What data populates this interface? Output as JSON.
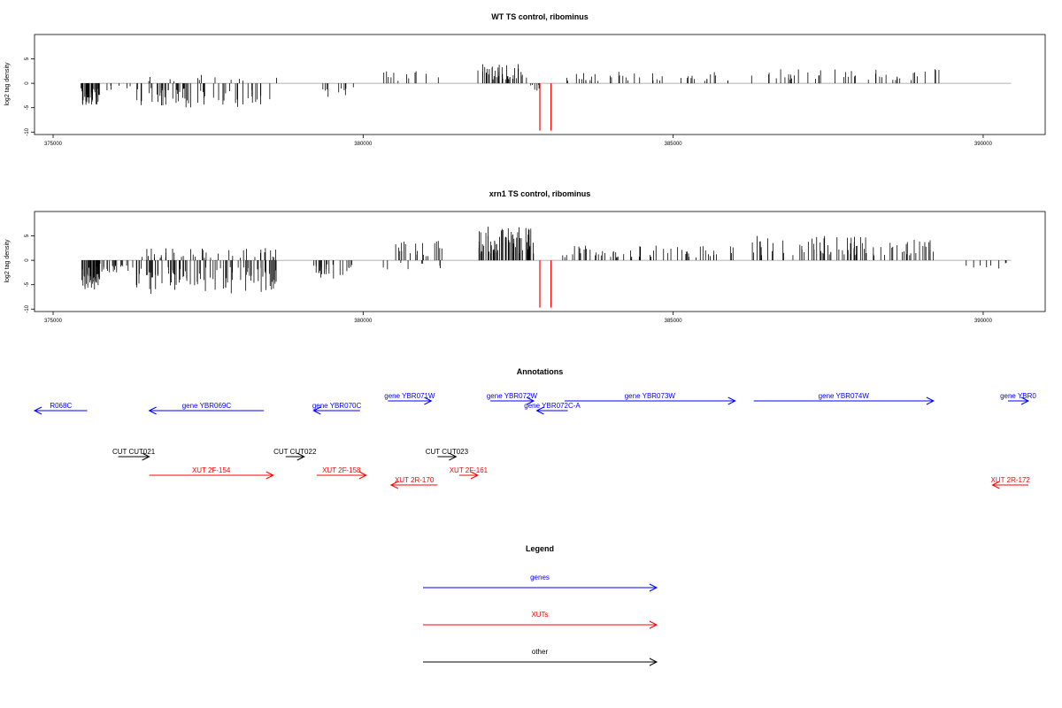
{
  "colors": {
    "genes": "#0000ff",
    "xuts": "#ff0000",
    "other": "#000000",
    "bars": "#000000",
    "highlight": "#ff0000",
    "baseline": "#999999"
  },
  "chart_data": [
    {
      "type": "bar",
      "title": "WT TS control, ribominus",
      "ylabel": "log2 tag density",
      "xlim": [
        374700,
        391000
      ],
      "ylim": [
        -10.5,
        10
      ],
      "xticks": [
        375000,
        380000,
        385000,
        390000
      ],
      "xtick_labels": [
        "375000",
        "380000",
        "385000",
        "390000"
      ],
      "yticks": [
        -10,
        -5,
        0,
        5
      ],
      "ytick_labels": [
        "-10",
        "-5",
        "0",
        "5"
      ],
      "baseline_range": [
        375450,
        390450
      ],
      "segments": [
        {
          "from": 375450,
          "to": 375750,
          "sign": -1,
          "amp": 4.5,
          "density": 45
        },
        {
          "from": 375750,
          "to": 376250,
          "sign": -1,
          "amp": 1.5,
          "density": 6
        },
        {
          "from": 376300,
          "to": 378500,
          "sign": -1,
          "amp": 5,
          "density": 60
        },
        {
          "from": 376500,
          "to": 378700,
          "sign": 1,
          "amp": 2,
          "density": 12
        },
        {
          "from": 379250,
          "to": 379900,
          "sign": -1,
          "amp": 3,
          "density": 10
        },
        {
          "from": 380300,
          "to": 381300,
          "sign": 1,
          "amp": 2.5,
          "density": 12
        },
        {
          "from": 381850,
          "to": 382650,
          "sign": 1,
          "amp": 4,
          "density": 45
        },
        {
          "from": 382700,
          "to": 382850,
          "sign": -1,
          "amp": 1.5,
          "density": 6
        },
        {
          "from": 383250,
          "to": 386000,
          "sign": 1,
          "amp": 2.5,
          "density": 40
        },
        {
          "from": 386250,
          "to": 389300,
          "sign": 1,
          "amp": 3,
          "density": 45
        }
      ],
      "highlight_bars": [
        {
          "x": 382850,
          "y": -9.7
        },
        {
          "x": 383030,
          "y": -9.7
        }
      ]
    },
    {
      "type": "bar",
      "title": "xrn1 TS control, ribominus",
      "ylabel": "log2 tag density",
      "xlim": [
        374700,
        391000
      ],
      "ylim": [
        -10.5,
        10
      ],
      "xticks": [
        375000,
        380000,
        385000,
        390000
      ],
      "xtick_labels": [
        "375000",
        "380000",
        "385000",
        "390000"
      ],
      "yticks": [
        -10,
        -5,
        0,
        5
      ],
      "ytick_labels": [
        "-10",
        "-5",
        "0",
        "5"
      ],
      "baseline_range": [
        375450,
        390450
      ],
      "segments": [
        {
          "from": 375450,
          "to": 375750,
          "sign": -1,
          "amp": 6,
          "density": 45
        },
        {
          "from": 375750,
          "to": 376300,
          "sign": -1,
          "amp": 2.5,
          "density": 20
        },
        {
          "from": 376300,
          "to": 378600,
          "sign": -1,
          "amp": 7,
          "density": 90
        },
        {
          "from": 376300,
          "to": 378600,
          "sign": 1,
          "amp": 2.5,
          "density": 40
        },
        {
          "from": 379200,
          "to": 379900,
          "sign": -1,
          "amp": 4,
          "density": 25
        },
        {
          "from": 380300,
          "to": 381300,
          "sign": 1,
          "amp": 4,
          "density": 20
        },
        {
          "from": 380300,
          "to": 381300,
          "sign": -1,
          "amp": 2,
          "density": 8
        },
        {
          "from": 381850,
          "to": 382750,
          "sign": 1,
          "amp": 7,
          "density": 70
        },
        {
          "from": 383200,
          "to": 386000,
          "sign": 1,
          "amp": 3,
          "density": 60
        },
        {
          "from": 386250,
          "to": 389250,
          "sign": 1,
          "amp": 5,
          "density": 80
        },
        {
          "from": 389700,
          "to": 390400,
          "sign": -1,
          "amp": 2,
          "density": 8
        }
      ],
      "highlight_bars": [
        {
          "x": 382850,
          "y": -9.7
        },
        {
          "x": 383030,
          "y": -9.7
        }
      ]
    }
  ],
  "annotations": {
    "title": "Annotations",
    "genes": [
      {
        "label": "R068C",
        "start": 374700,
        "end": 375550,
        "dir": -1,
        "row": 1
      },
      {
        "label": "gene YBR069C",
        "start": 376550,
        "end": 378400,
        "dir": -1,
        "row": 1
      },
      {
        "label": "gene YBR070C",
        "start": 379200,
        "end": 379950,
        "dir": -1,
        "row": 1
      },
      {
        "label": "gene YBR071W",
        "start": 380400,
        "end": 381100,
        "dir": 1,
        "row": 0
      },
      {
        "label": "gene YBR072W",
        "start": 382050,
        "end": 382750,
        "dir": 1,
        "row": 0
      },
      {
        "label": "gene YBR072C-A",
        "start": 382800,
        "end": 383300,
        "dir": -1,
        "row": 1
      },
      {
        "label": "gene YBR073W",
        "start": 383250,
        "end": 386000,
        "dir": 1,
        "row": 0
      },
      {
        "label": "gene YBR074W",
        "start": 386300,
        "end": 389200,
        "dir": 1,
        "row": 0
      },
      {
        "label": "gene YBR0",
        "start": 390400,
        "end": 391000,
        "dir": 1,
        "row": 0
      }
    ],
    "xuts": [
      {
        "label": "XUT 2F-154",
        "start": 376550,
        "end": 378550,
        "dir": 1,
        "row": 1
      },
      {
        "label": "XUT 2F-158",
        "start": 379250,
        "end": 380050,
        "dir": 1,
        "row": 1
      },
      {
        "label": "XUT 2R-170",
        "start": 380450,
        "end": 381200,
        "dir": -1,
        "row": 2
      },
      {
        "label": "XUT 2F-161",
        "start": 381550,
        "end": 381850,
        "dir": 1,
        "row": 1
      },
      {
        "label": "XUT 2R-172",
        "start": 390150,
        "end": 390750,
        "dir": -1,
        "row": 2
      }
    ],
    "other": [
      {
        "label": "CUT CUT021",
        "start": 376050,
        "end": 376550,
        "dir": 1,
        "row": 0
      },
      {
        "label": "CUT CUT022",
        "start": 378750,
        "end": 379050,
        "dir": 1,
        "row": 0
      },
      {
        "label": "CUT CUT023",
        "start": 381200,
        "end": 381500,
        "dir": 1,
        "row": 0
      }
    ]
  },
  "legend": {
    "title": "Legend",
    "items": [
      {
        "label": "genes",
        "color": "#0000ff"
      },
      {
        "label": "XUTs",
        "color": "#ff0000"
      },
      {
        "label": "other",
        "color": "#000000"
      }
    ]
  }
}
